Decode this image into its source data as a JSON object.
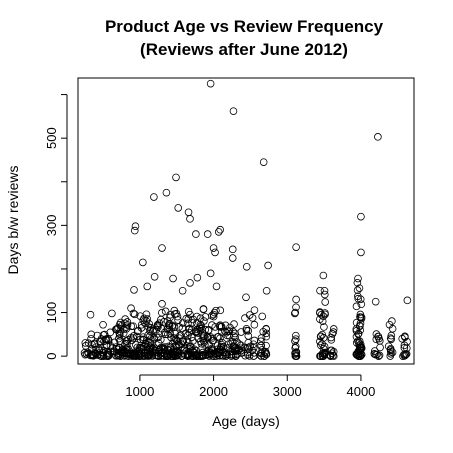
{
  "chart_data": {
    "type": "scatter",
    "title_line1": "Product Age vs Review Frequency",
    "title_line2": "(Reviews after June 2012)",
    "xlabel": "Age (days)",
    "ylabel": "Days b/w reviews",
    "xlim": [
      160,
      4720
    ],
    "ylim": [
      -18,
      638
    ],
    "x_ticks": [
      1000,
      2000,
      3000,
      4000
    ],
    "x_tick_labels": [
      "1000",
      "2000",
      "3000",
      "4000"
    ],
    "y_ticks": [
      0,
      100,
      200,
      300,
      400,
      500,
      600
    ],
    "y_tick_labels": [
      "0",
      "100",
      "",
      "300",
      "",
      "500",
      ""
    ],
    "marker": "open-circle",
    "marker_color": "#000000",
    "grid": false,
    "legend": "none",
    "points": [
      [
        1960,
        625
      ],
      [
        2270,
        562
      ],
      [
        4230,
        503
      ],
      [
        2680,
        445
      ],
      [
        1490,
        410
      ],
      [
        1360,
        375
      ],
      [
        1190,
        365
      ],
      [
        1520,
        340
      ],
      [
        1660,
        330
      ],
      [
        1680,
        315
      ],
      [
        4000,
        320
      ],
      [
        2090,
        290
      ],
      [
        2070,
        285
      ],
      [
        1760,
        280
      ],
      [
        1920,
        280
      ],
      [
        940,
        298
      ],
      [
        930,
        288
      ],
      [
        3120,
        250
      ],
      [
        2260,
        245
      ],
      [
        1300,
        248
      ],
      [
        2000,
        248
      ],
      [
        2020,
        238
      ],
      [
        2260,
        225
      ],
      [
        4000,
        238
      ],
      [
        1040,
        215
      ],
      [
        2740,
        208
      ],
      [
        2450,
        205
      ],
      [
        1780,
        180
      ],
      [
        1680,
        168
      ],
      [
        1450,
        178
      ],
      [
        1200,
        182
      ],
      [
        1960,
        190
      ],
      [
        2040,
        160
      ],
      [
        1580,
        150
      ],
      [
        1100,
        160
      ],
      [
        920,
        152
      ],
      [
        3490,
        185
      ],
      [
        3960,
        178
      ],
      [
        4200,
        125
      ],
      [
        4630,
        128
      ],
      [
        4560,
        40
      ],
      [
        330,
        95
      ],
      [
        500,
        72
      ],
      [
        620,
        98
      ],
      [
        800,
        85
      ],
      [
        880,
        110
      ],
      [
        1300,
        120
      ],
      [
        2440,
        135
      ],
      [
        2720,
        150
      ],
      [
        3120,
        130
      ],
      [
        340,
        50
      ]
    ],
    "bands": [
      {
        "x0": 230,
        "x1": 400,
        "ymax": 40,
        "n": 22
      },
      {
        "x0": 400,
        "x1": 650,
        "ymax": 55,
        "n": 40
      },
      {
        "x0": 650,
        "x1": 900,
        "ymax": 80,
        "n": 65
      },
      {
        "x0": 900,
        "x1": 1200,
        "ymax": 100,
        "n": 90
      },
      {
        "x0": 1200,
        "x1": 1500,
        "ymax": 105,
        "n": 90
      },
      {
        "x0": 1500,
        "x1": 1800,
        "ymax": 110,
        "n": 85
      },
      {
        "x0": 1800,
        "x1": 2100,
        "ymax": 115,
        "n": 85
      },
      {
        "x0": 2100,
        "x1": 2400,
        "ymax": 80,
        "n": 60
      },
      {
        "x0": 2400,
        "x1": 2560,
        "ymax": 120,
        "n": 25
      },
      {
        "x0": 2640,
        "x1": 2720,
        "ymax": 100,
        "n": 22
      },
      {
        "x0": 3100,
        "x1": 3130,
        "ymax": 120,
        "n": 16
      },
      {
        "x0": 3440,
        "x1": 3520,
        "ymax": 170,
        "n": 35
      },
      {
        "x0": 3580,
        "x1": 3640,
        "ymax": 65,
        "n": 14
      },
      {
        "x0": 3930,
        "x1": 4010,
        "ymax": 170,
        "n": 55
      },
      {
        "x0": 4180,
        "x1": 4260,
        "ymax": 70,
        "n": 14
      },
      {
        "x0": 4370,
        "x1": 4430,
        "ymax": 100,
        "n": 14
      },
      {
        "x0": 4570,
        "x1": 4640,
        "ymax": 55,
        "n": 12
      }
    ]
  }
}
